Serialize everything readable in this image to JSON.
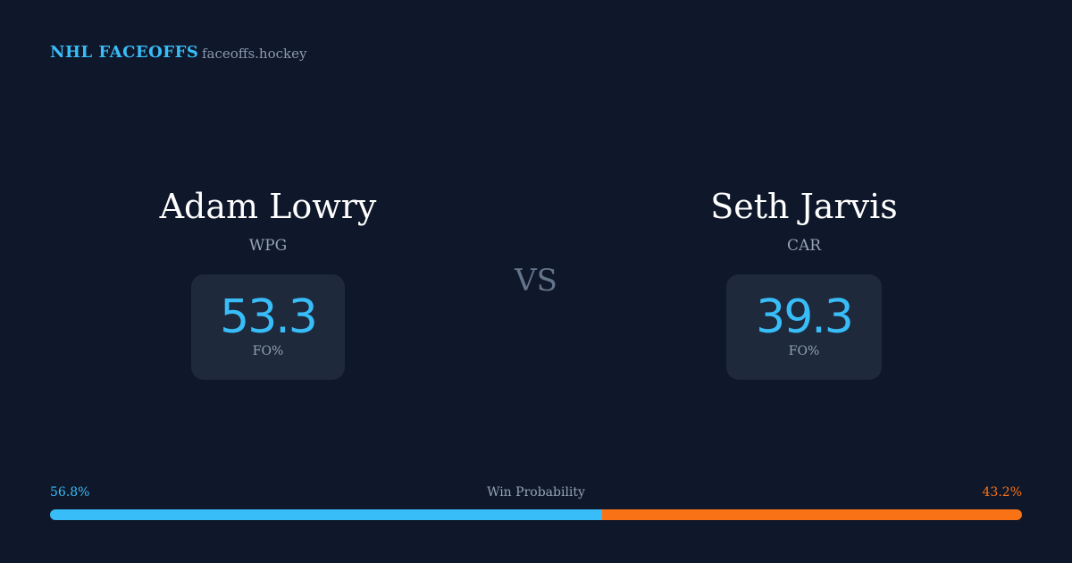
{
  "header": {
    "brand": "NHL FACEOFFS",
    "site": "faceoffs.hockey"
  },
  "players": [
    {
      "name": "Adam Lowry",
      "team": "WPG",
      "fo_value": 53.3,
      "fo_label": "FO%"
    },
    {
      "name": "Seth Jarvis",
      "team": "CAR",
      "fo_value": 39.3,
      "fo_label": "FO%"
    }
  ],
  "vs": "VS",
  "win_probability": {
    "label": "Win Probability",
    "values": [
      56.8,
      43.2
    ],
    "value_labels": [
      "56.8%",
      "43.2%"
    ],
    "colors": [
      "#38bdf8",
      "#f97316"
    ]
  }
}
